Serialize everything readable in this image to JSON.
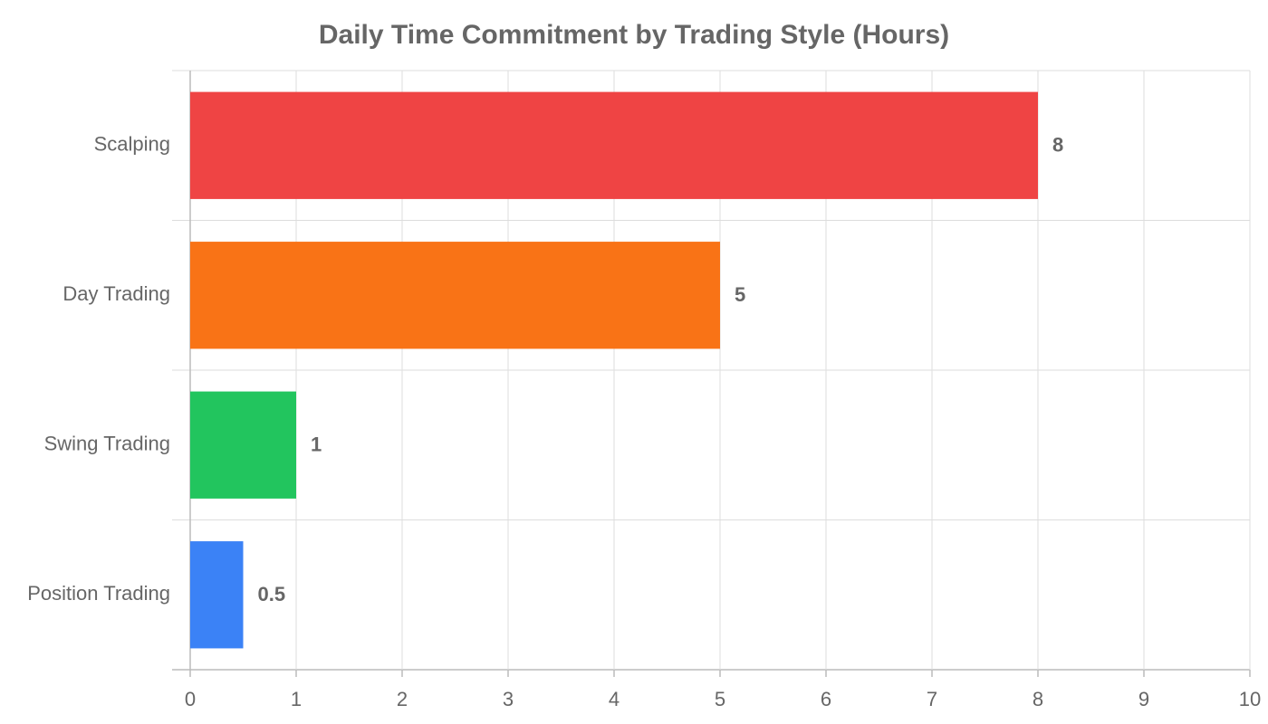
{
  "chart_data": {
    "type": "bar",
    "orientation": "horizontal",
    "title": "Daily Time Commitment by Trading Style (Hours)",
    "categories": [
      "Scalping",
      "Day Trading",
      "Swing Trading",
      "Position Trading"
    ],
    "values": [
      8,
      5,
      1,
      0.5
    ],
    "colors": [
      "#ef4444",
      "#f97316",
      "#22c55e",
      "#3b82f6"
    ],
    "xlim": [
      0,
      10
    ],
    "xticks": [
      0,
      1,
      2,
      3,
      4,
      5,
      6,
      7,
      8,
      9,
      10
    ],
    "grid": true
  }
}
